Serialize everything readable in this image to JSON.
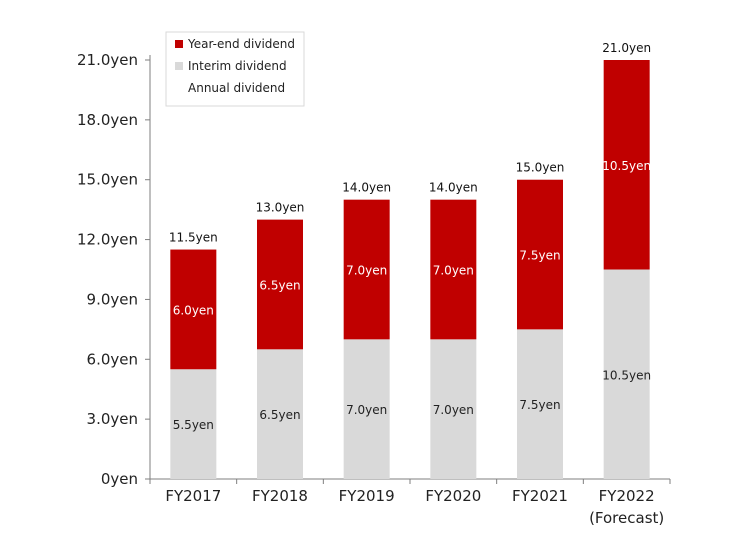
{
  "chart_data": {
    "type": "bar",
    "stacked": true,
    "categories": [
      "FY2017",
      "FY2018",
      "FY2019",
      "FY2020",
      "FY2021",
      "FY2022"
    ],
    "category_notes": [
      "",
      "",
      "",
      "",
      "",
      "(Forecast)"
    ],
    "highlight_category_color": "#c00000",
    "series": [
      {
        "name": "Interim dividend",
        "color": "#d9d9d9",
        "values": [
          5.5,
          6.5,
          7.0,
          7.0,
          7.5,
          10.5
        ],
        "labels": [
          "5.5yen",
          "6.5yen",
          "7.0yen",
          "7.0yen",
          "7.5yen",
          "10.5yen"
        ]
      },
      {
        "name": "Year-end dividend",
        "color": "#c00000",
        "values": [
          6.0,
          6.5,
          7.0,
          7.0,
          7.5,
          10.5
        ],
        "labels": [
          "6.0yen",
          "6.5yen",
          "7.0yen",
          "7.0yen",
          "7.5yen",
          "10.5yen"
        ]
      }
    ],
    "totals": {
      "name": "Annual dividend",
      "values": [
        11.5,
        13.0,
        14.0,
        14.0,
        15.0,
        21.0
      ],
      "labels": [
        "11.5yen",
        "13.0yen",
        "14.0yen",
        "14.0yen",
        "15.0yen",
        "21.0yen"
      ]
    },
    "y_ticks": [
      0,
      3,
      6,
      9,
      12,
      15,
      18,
      21
    ],
    "y_tick_labels": [
      "0yen",
      "3.0yen",
      "6.0yen",
      "9.0yen",
      "12.0yen",
      "15.0yen",
      "18.0yen",
      "21.0yen"
    ],
    "ylim": [
      0,
      21
    ],
    "grid": false,
    "legend": {
      "placement": "top-left",
      "items": [
        {
          "label": "Year-end dividend",
          "color": "#c00000"
        },
        {
          "label": "Interim dividend",
          "color": "#d9d9d9"
        },
        {
          "label": "Annual dividend",
          "color": ""
        }
      ]
    }
  }
}
